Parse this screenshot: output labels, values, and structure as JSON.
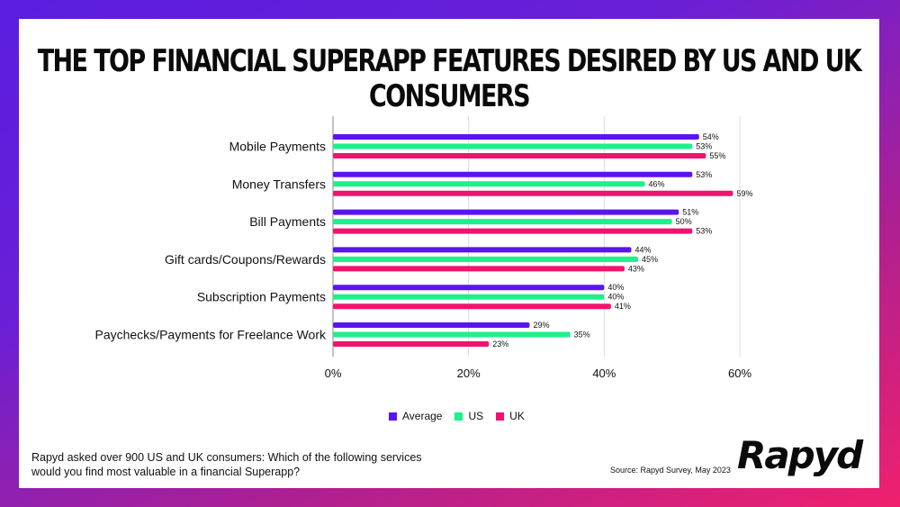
{
  "title": "THE TOP FINANCIAL SUPERAPP FEATURES DESIRED BY US AND UK CONSUMERS",
  "footnote": "Rapyd asked over 900 US and UK consumers: Which of the following services would you find most valuable in a financial Superapp?",
  "source": "Source: Rapyd Survey, May 2023",
  "logo_text": "Rapyd",
  "chart_data": {
    "type": "bar",
    "orientation": "horizontal",
    "categories": [
      "Mobile Payments",
      "Money Transfers",
      "Bill Payments",
      "Gift cards/Coupons/Rewards",
      "Subscription Payments",
      "Paychecks/Payments for Freelance Work"
    ],
    "series": [
      {
        "name": "Average",
        "color": "#5a14f0",
        "values": [
          54,
          53,
          51,
          44,
          40,
          29
        ]
      },
      {
        "name": "US",
        "color": "#1ef08c",
        "values": [
          53,
          46,
          50,
          45,
          40,
          35
        ]
      },
      {
        "name": "UK",
        "color": "#f0146e",
        "values": [
          55,
          59,
          53,
          43,
          41,
          23
        ]
      }
    ],
    "x_ticks": [
      "0%",
      "20%",
      "40%",
      "60%"
    ],
    "xlim": [
      0,
      60
    ],
    "value_suffix": "%",
    "grid": true,
    "legend_position": "bottom"
  }
}
